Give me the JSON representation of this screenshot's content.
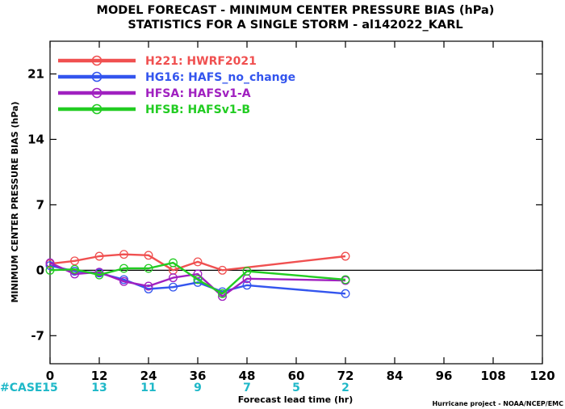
{
  "chart_data": {
    "type": "line",
    "title": "MODEL FORECAST - MINIMUM CENTER PRESSURE BIAS (hPa)",
    "subtitle": "STATISTICS FOR A SINGLE STORM - al142022_KARL",
    "xlabel": "Forecast lead time (hr)",
    "ylabel": "MINIMUM CENTER PRESSURE BIAS (hPa)",
    "xlim": [
      0,
      120
    ],
    "ylim": [
      -10,
      24.5
    ],
    "x_ticks": [
      0,
      12,
      24,
      36,
      48,
      60,
      72,
      84,
      96,
      108,
      120
    ],
    "y_ticks": [
      -7,
      0,
      7,
      14,
      21
    ],
    "grid": false,
    "legend_position": "top-left",
    "case_label": "#CASE",
    "case_counts": [
      {
        "x": 0,
        "n": "15"
      },
      {
        "x": 12,
        "n": "13"
      },
      {
        "x": 24,
        "n": "11"
      },
      {
        "x": 36,
        "n": "9"
      },
      {
        "x": 48,
        "n": "7"
      },
      {
        "x": 60,
        "n": "5"
      },
      {
        "x": 72,
        "n": "2"
      }
    ],
    "series": [
      {
        "code": "H221",
        "label": "HWRF2021",
        "color": "#f05050",
        "x": [
          0,
          6,
          12,
          18,
          24,
          30,
          36,
          42,
          72
        ],
        "values": [
          0.7,
          1.0,
          1.5,
          1.7,
          1.6,
          0.0,
          0.9,
          0.0,
          1.5
        ]
      },
      {
        "code": "HG16",
        "label": "HAFS_no_change",
        "color": "#3355ee",
        "x": [
          0,
          6,
          12,
          18,
          24,
          30,
          36,
          42,
          48,
          72
        ],
        "values": [
          0.5,
          -0.1,
          -0.3,
          -1.0,
          -2.0,
          -1.8,
          -1.3,
          -2.3,
          -1.6,
          -2.5
        ]
      },
      {
        "code": "HFSA",
        "label": "HAFSv1-A",
        "color": "#a020c0",
        "x": [
          0,
          6,
          12,
          18,
          24,
          30,
          36,
          42,
          48,
          72
        ],
        "values": [
          0.8,
          -0.4,
          -0.2,
          -1.2,
          -1.7,
          -0.8,
          -0.4,
          -2.8,
          -0.9,
          -1.1
        ]
      },
      {
        "code": "HFSB",
        "label": "HAFSv1-B",
        "color": "#22cc22",
        "x": [
          0,
          6,
          12,
          18,
          24,
          30,
          36,
          42,
          48,
          72
        ],
        "values": [
          0.0,
          0.1,
          -0.5,
          0.2,
          0.2,
          0.8,
          -1.0,
          -2.5,
          -0.1,
          -1.0
        ]
      }
    ]
  },
  "credit": "Hurricane project - NOAA/NCEP/EMC"
}
